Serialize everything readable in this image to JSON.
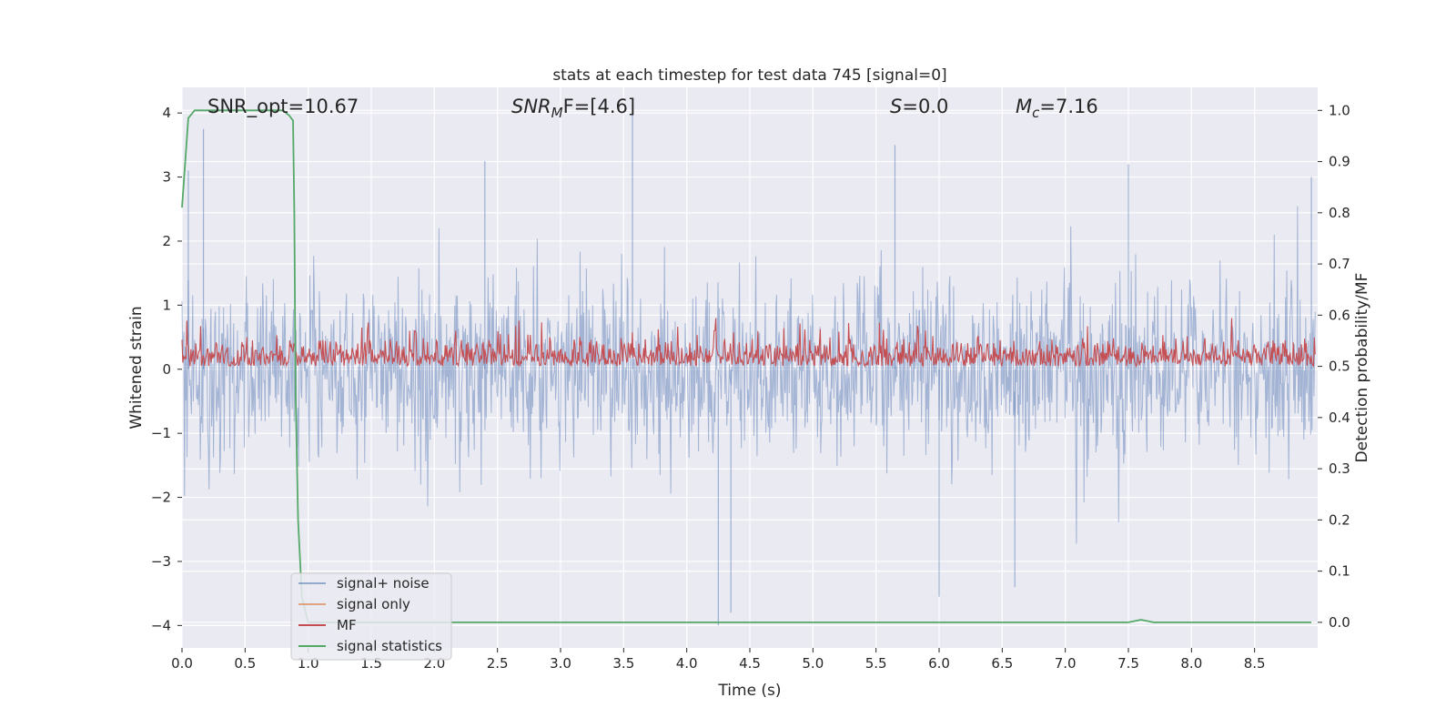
{
  "chart_data": {
    "type": "line",
    "title": "stats at each timestep for test data 745 [signal=0]",
    "xlabel": "Time (s)",
    "ylabel_left": "Whitened strain",
    "ylabel_right": "Detection probability/MF",
    "xlim": [
      0.0,
      9.0
    ],
    "ylim_left": [
      -4.35,
      4.4
    ],
    "ylim_right": [
      -0.05,
      1.045
    ],
    "x_ticks": [
      "0.0",
      "0.5",
      "1.0",
      "1.5",
      "2.0",
      "2.5",
      "3.0",
      "3.5",
      "4.0",
      "4.5",
      "5.0",
      "5.5",
      "6.0",
      "6.5",
      "7.0",
      "7.5",
      "8.0",
      "8.5"
    ],
    "y_ticks_left": [
      "−4",
      "−3",
      "−2",
      "−1",
      "0",
      "1",
      "2",
      "3",
      "4"
    ],
    "y_ticks_right": [
      "0.0",
      "0.1",
      "0.2",
      "0.3",
      "0.4",
      "0.5",
      "0.6",
      "0.7",
      "0.8",
      "0.9",
      "1.0"
    ],
    "grid": true,
    "legend_position": "lower-left",
    "annotations": [
      {
        "id": "snr_opt",
        "text": "SNR_opt=10.67"
      },
      {
        "id": "snr_mf",
        "parts": [
          {
            "t": "SNR",
            "style": "italic"
          },
          {
            "t": "M",
            "style": "italic-sub"
          },
          {
            "t": "F=[4.6]",
            "style": "italic-F"
          }
        ]
      },
      {
        "id": "s",
        "parts": [
          {
            "t": "S",
            "style": "italic"
          },
          {
            "t": "=0.0",
            "style": "normal"
          }
        ]
      },
      {
        "id": "mc",
        "parts": [
          {
            "t": "M",
            "style": "italic"
          },
          {
            "t": "c",
            "style": "italic-sub"
          },
          {
            "t": "=7.16",
            "style": "normal"
          }
        ]
      }
    ],
    "series": [
      {
        "name": "signal+ noise",
        "axis": "left",
        "color": "#4c72b0",
        "description_noise": {
          "envelope_typical": 2.3,
          "peak_max": 4.0,
          "peak_min": -4.0
        },
        "notable_peaks": [
          [
            0.05,
            3.1
          ],
          [
            0.17,
            3.75
          ],
          [
            2.4,
            3.25
          ],
          [
            3.57,
            4.0
          ],
          [
            5.65,
            3.5
          ],
          [
            7.5,
            3.2
          ],
          [
            8.95,
            3.0
          ],
          [
            4.25,
            -4.0
          ],
          [
            4.35,
            -3.8
          ],
          [
            6.0,
            -3.55
          ],
          [
            6.6,
            -3.4
          ]
        ]
      },
      {
        "name": "signal only",
        "axis": "left",
        "color": "#dd8452",
        "values": []
      },
      {
        "name": "MF",
        "axis": "right",
        "color": "#c44e52",
        "description_noise": {
          "baseline": 0.5,
          "typical_max": 0.59,
          "peak_max": 0.625
        }
      },
      {
        "name": "signal statistics",
        "axis": "right",
        "color": "#55a868",
        "points": [
          [
            0.0,
            0.81
          ],
          [
            0.05,
            0.985
          ],
          [
            0.1,
            1.0
          ],
          [
            0.8,
            1.0
          ],
          [
            0.85,
            0.99
          ],
          [
            0.88,
            0.98
          ],
          [
            0.89,
            0.8
          ],
          [
            0.9,
            0.45
          ],
          [
            0.92,
            0.2
          ],
          [
            0.95,
            0.05
          ],
          [
            1.0,
            0.0
          ],
          [
            6.2,
            0.0
          ],
          [
            7.5,
            0.0
          ],
          [
            7.6,
            0.005
          ],
          [
            7.7,
            0.0
          ],
          [
            8.3,
            0.0
          ],
          [
            8.95,
            0.0
          ]
        ]
      }
    ]
  }
}
